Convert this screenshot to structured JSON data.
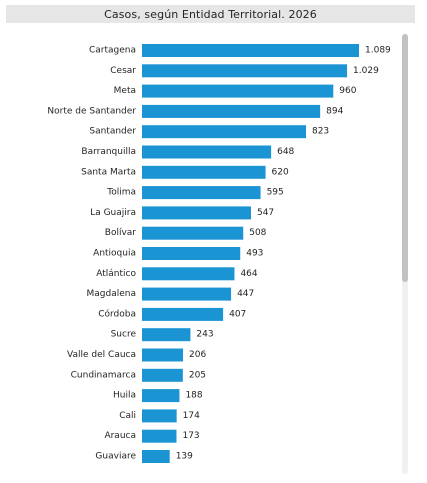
{
  "chart_data": {
    "type": "bar",
    "orientation": "horizontal",
    "title": "Casos, según Entidad Territorial. 2026",
    "categories": [
      "Cartagena",
      "Cesar",
      "Meta",
      "Norte de Santander",
      "Santander",
      "Barranquilla",
      "Santa Marta",
      "Tolima",
      "La Guajira",
      "Bolívar",
      "Antioquia",
      "Atlántico",
      "Magdalena",
      "Córdoba",
      "Sucre",
      "Valle del Cauca",
      "Cundinamarca",
      "Huila",
      "Cali",
      "Arauca",
      "Guaviare"
    ],
    "values": [
      1089,
      1029,
      960,
      894,
      823,
      648,
      620,
      595,
      547,
      508,
      493,
      464,
      447,
      407,
      243,
      206,
      205,
      188,
      174,
      173,
      139
    ],
    "value_labels": [
      "1.089",
      "1.029",
      "960",
      "894",
      "823",
      "648",
      "620",
      "595",
      "547",
      "508",
      "493",
      "464",
      "447",
      "407",
      "243",
      "206",
      "205",
      "188",
      "174",
      "173",
      "139"
    ],
    "bar_color": "#1b94d4",
    "xlim": [
      0,
      1089
    ],
    "grid": false,
    "legend": "none"
  }
}
